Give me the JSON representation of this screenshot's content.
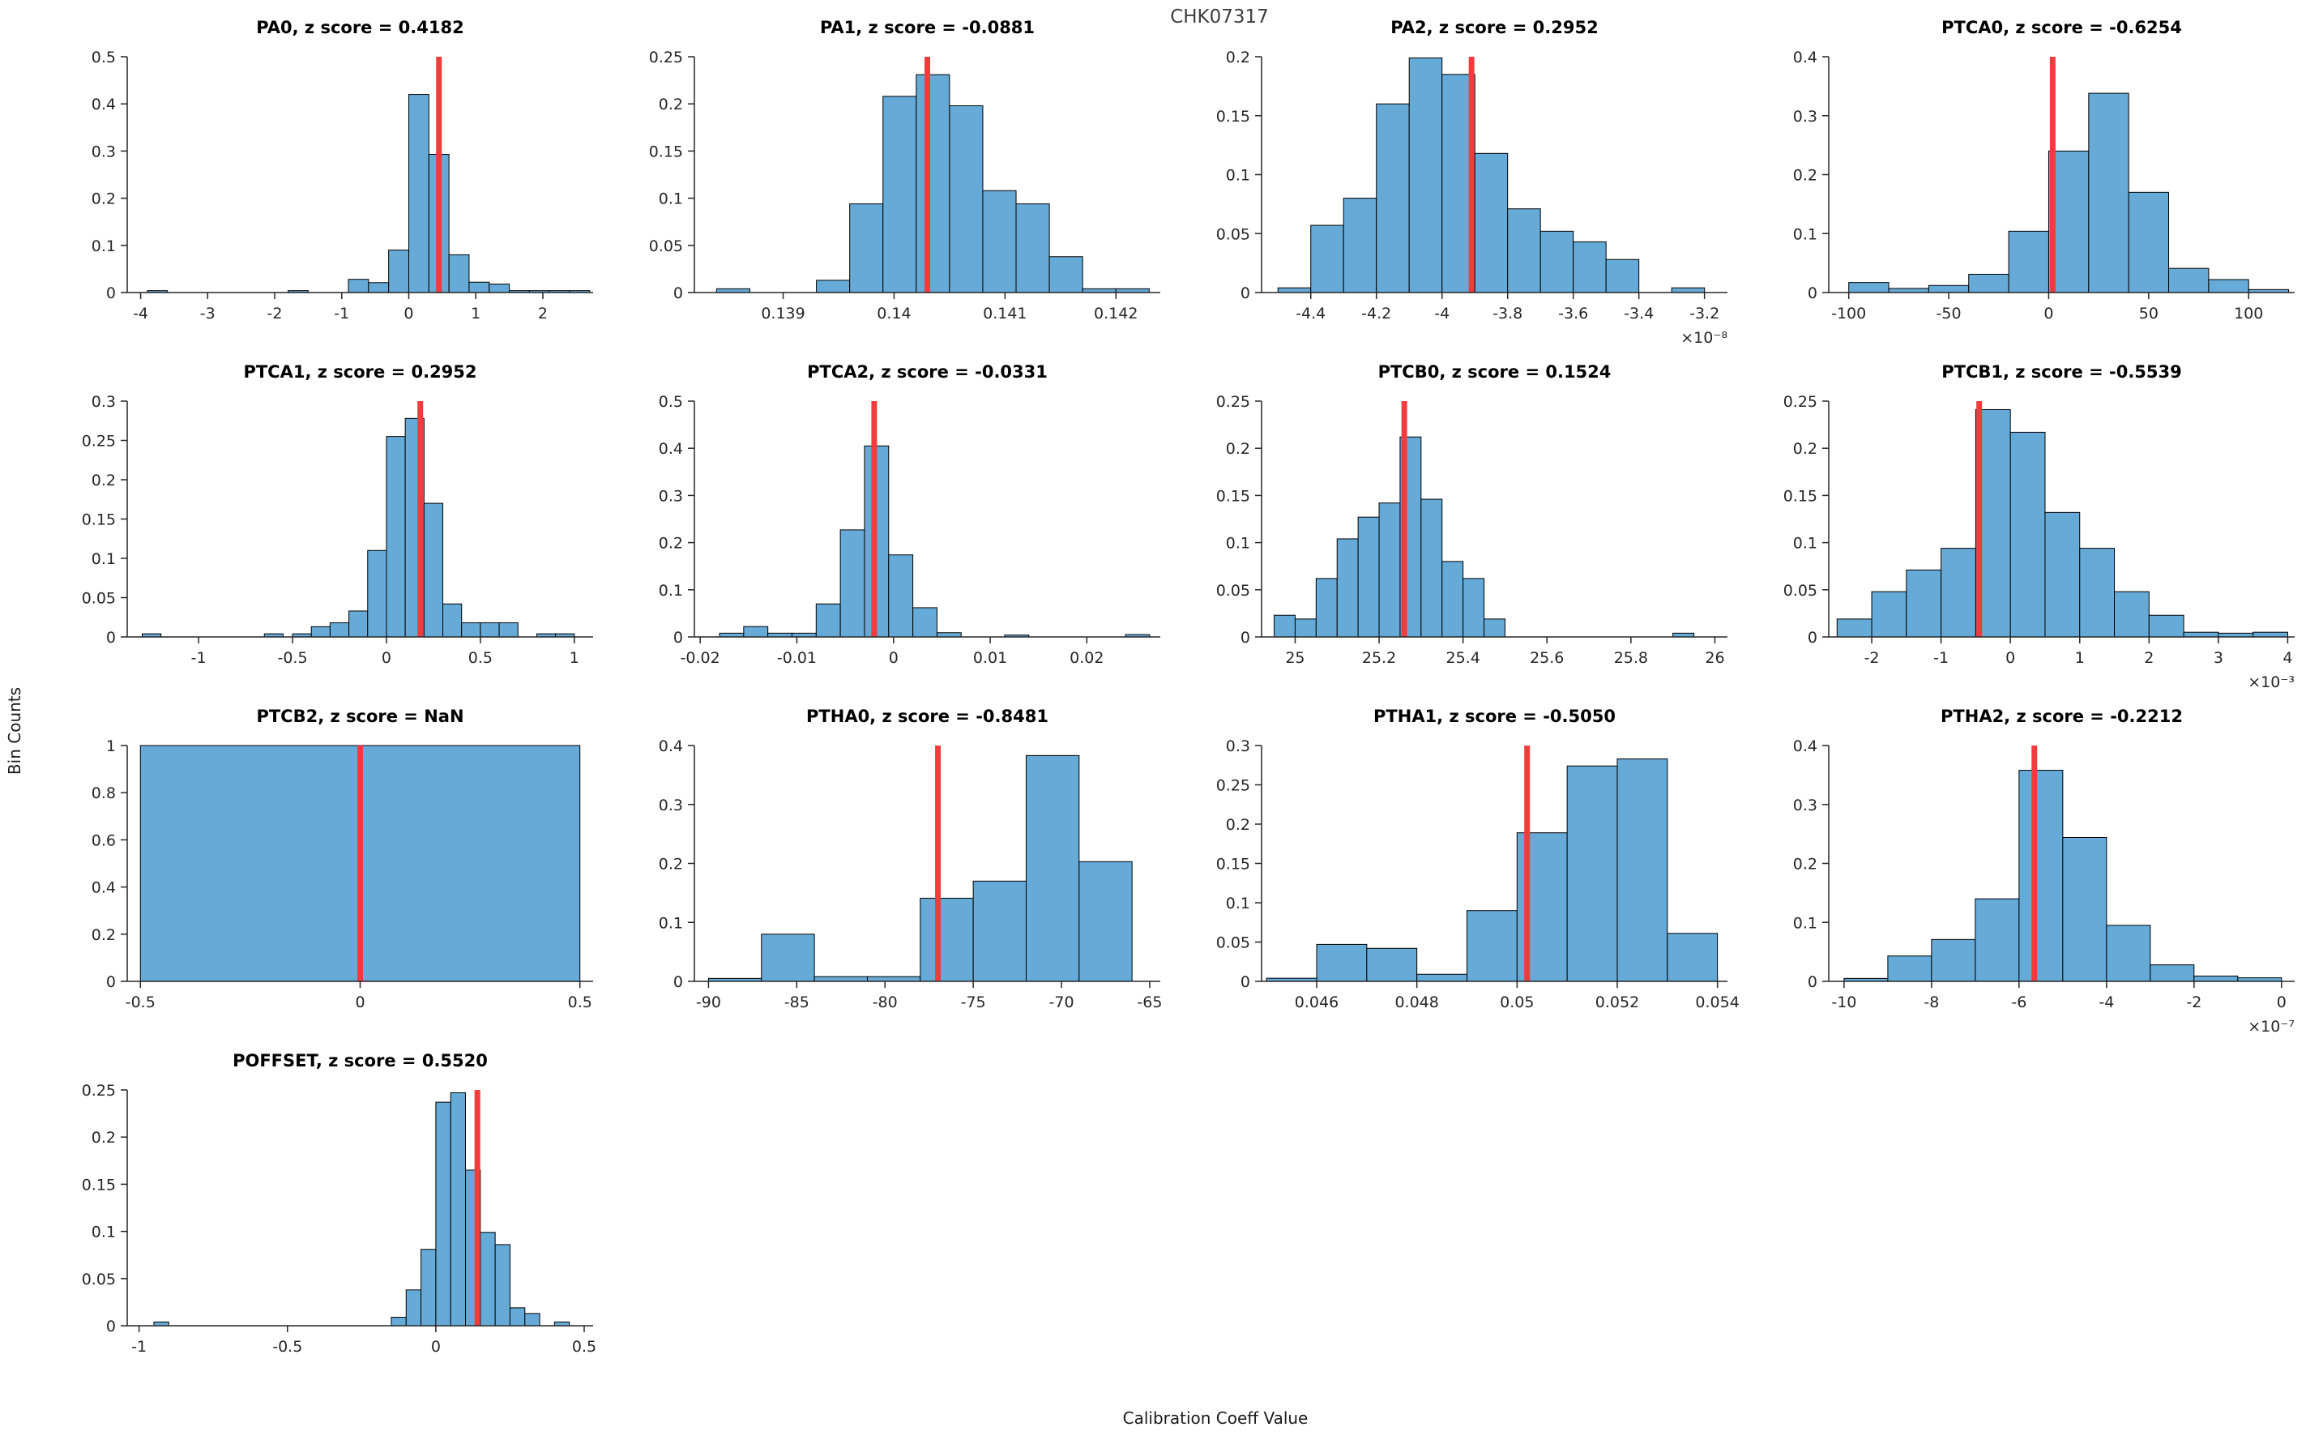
{
  "figure": {
    "title": "CHK07317",
    "ylabel": "Bin Counts",
    "xlabel": "Calibration Coeff Value",
    "colors": {
      "bar_fill": "#66aad7",
      "bar_edge": "#000000",
      "marker_line": "#f03c3c",
      "axis": "#262626",
      "tick_label": "#262626"
    }
  },
  "chart_data": [
    {
      "type": "bar",
      "name": "PA0",
      "title": "PA0, z score = 0.4182",
      "xlim": [
        -4.2,
        2.75
      ],
      "ylim": [
        0,
        0.5
      ],
      "xticks": [
        [
          -4,
          "-4"
        ],
        [
          -3,
          "-3"
        ],
        [
          -2,
          "-2"
        ],
        [
          -1,
          "-1"
        ],
        [
          0,
          "0"
        ],
        [
          1,
          "1"
        ],
        [
          2,
          "2"
        ]
      ],
      "yticks": [
        [
          0,
          "0"
        ],
        [
          0.1,
          "0.1"
        ],
        [
          0.2,
          "0.2"
        ],
        [
          0.3,
          "0.3"
        ],
        [
          0.4,
          "0.4"
        ],
        [
          0.5,
          "0.5"
        ]
      ],
      "bin_width": 0.3,
      "bins": [
        [
          -3.9,
          0.004
        ],
        [
          -1.8,
          0.004
        ],
        [
          -0.9,
          0.028
        ],
        [
          -0.6,
          0.021
        ],
        [
          -0.3,
          0.09
        ],
        [
          0,
          0.42
        ],
        [
          0.3,
          0.293
        ],
        [
          0.6,
          0.08
        ],
        [
          0.9,
          0.022
        ],
        [
          1.2,
          0.018
        ],
        [
          1.5,
          0.004
        ],
        [
          1.8,
          0.004
        ],
        [
          2.1,
          0.004
        ],
        [
          2.4,
          0.004
        ]
      ],
      "marker_x": 0.45,
      "x_exponent": null
    },
    {
      "type": "bar",
      "name": "PA1",
      "title": "PA1, z score = -0.0881",
      "xlim": [
        0.1382,
        0.1424
      ],
      "ylim": [
        0,
        0.25
      ],
      "xticks": [
        [
          0.139,
          "0.139"
        ],
        [
          0.14,
          "0.14"
        ],
        [
          0.141,
          "0.141"
        ],
        [
          0.142,
          "0.142"
        ]
      ],
      "yticks": [
        [
          0,
          "0"
        ],
        [
          0.05,
          "0.05"
        ],
        [
          0.1,
          "0.1"
        ],
        [
          0.15,
          "0.15"
        ],
        [
          0.2,
          "0.2"
        ],
        [
          0.25,
          "0.25"
        ]
      ],
      "bin_width": 0.0003,
      "bins": [
        [
          0.1384,
          0.004
        ],
        [
          0.1393,
          0.013
        ],
        [
          0.1396,
          0.094
        ],
        [
          0.1399,
          0.208
        ],
        [
          0.1402,
          0.231
        ],
        [
          0.1405,
          0.198
        ],
        [
          0.1408,
          0.108
        ],
        [
          0.1411,
          0.094
        ],
        [
          0.1414,
          0.038
        ],
        [
          0.1417,
          0.004
        ],
        [
          0.142,
          0.004
        ]
      ],
      "marker_x": 0.1403,
      "x_exponent": null
    },
    {
      "type": "bar",
      "name": "PA2",
      "title": "PA2, z score = 0.2952",
      "xlim": [
        -4.55,
        -3.13
      ],
      "ylim": [
        0,
        0.2
      ],
      "xticks": [
        [
          -4.4,
          "-4.4"
        ],
        [
          -4.2,
          "-4.2"
        ],
        [
          -4,
          "-4"
        ],
        [
          -3.8,
          "-3.8"
        ],
        [
          -3.6,
          "-3.6"
        ],
        [
          -3.4,
          "-3.4"
        ],
        [
          -3.2,
          "-3.2"
        ]
      ],
      "yticks": [
        [
          0,
          "0"
        ],
        [
          0.05,
          "0.05"
        ],
        [
          0.1,
          "0.1"
        ],
        [
          0.15,
          "0.15"
        ],
        [
          0.2,
          "0.2"
        ]
      ],
      "bin_width": 0.1,
      "bins": [
        [
          -4.5,
          0.004
        ],
        [
          -4.4,
          0.057
        ],
        [
          -4.3,
          0.08
        ],
        [
          -4.2,
          0.16
        ],
        [
          -4.1,
          0.199
        ],
        [
          -4.0,
          0.185
        ],
        [
          -3.9,
          0.118
        ],
        [
          -3.8,
          0.071
        ],
        [
          -3.7,
          0.052
        ],
        [
          -3.6,
          0.043
        ],
        [
          -3.5,
          0.028
        ],
        [
          -3.3,
          0.004
        ]
      ],
      "marker_x": -3.91,
      "x_exponent": "×10⁻⁸"
    },
    {
      "type": "bar",
      "name": "PTCA0",
      "title": "PTCA0, z score = -0.6254",
      "xlim": [
        -110,
        123
      ],
      "ylim": [
        0,
        0.4
      ],
      "xticks": [
        [
          -100,
          "-100"
        ],
        [
          -50,
          "-50"
        ],
        [
          0,
          "0"
        ],
        [
          50,
          "50"
        ],
        [
          100,
          "100"
        ]
      ],
      "yticks": [
        [
          0,
          "0"
        ],
        [
          0.1,
          "0.1"
        ],
        [
          0.2,
          "0.2"
        ],
        [
          0.3,
          "0.3"
        ],
        [
          0.4,
          "0.4"
        ]
      ],
      "bin_width": 20,
      "bins": [
        [
          -100,
          0.017
        ],
        [
          -80,
          0.007
        ],
        [
          -60,
          0.012
        ],
        [
          -40,
          0.031
        ],
        [
          -20,
          0.104
        ],
        [
          0,
          0.24
        ],
        [
          20,
          0.338
        ],
        [
          40,
          0.17
        ],
        [
          60,
          0.041
        ],
        [
          80,
          0.022
        ],
        [
          100,
          0.005
        ]
      ],
      "marker_x": 2,
      "x_exponent": null
    },
    {
      "type": "bar",
      "name": "PTCA1",
      "title": "PTCA1, z score = 0.2952",
      "xlim": [
        -1.38,
        1.1
      ],
      "ylim": [
        0,
        0.3
      ],
      "xticks": [
        [
          -1,
          "-1"
        ],
        [
          -0.5,
          "-0.5"
        ],
        [
          0,
          "0"
        ],
        [
          0.5,
          "0.5"
        ],
        [
          1,
          "1"
        ]
      ],
      "yticks": [
        [
          0,
          "0"
        ],
        [
          0.05,
          "0.05"
        ],
        [
          0.1,
          "0.1"
        ],
        [
          0.15,
          "0.15"
        ],
        [
          0.2,
          "0.2"
        ],
        [
          0.25,
          "0.25"
        ],
        [
          0.3,
          "0.3"
        ]
      ],
      "bin_width": 0.1,
      "bins": [
        [
          -1.3,
          0.004
        ],
        [
          -0.65,
          0.004
        ],
        [
          -0.5,
          0.004
        ],
        [
          -0.4,
          0.013
        ],
        [
          -0.3,
          0.018
        ],
        [
          -0.2,
          0.033
        ],
        [
          -0.1,
          0.11
        ],
        [
          0,
          0.255
        ],
        [
          0.1,
          0.278
        ],
        [
          0.2,
          0.17
        ],
        [
          0.3,
          0.042
        ],
        [
          0.4,
          0.018
        ],
        [
          0.5,
          0.018
        ],
        [
          0.6,
          0.018
        ],
        [
          0.8,
          0.004
        ],
        [
          0.9,
          0.004
        ]
      ],
      "marker_x": 0.18,
      "x_exponent": null
    },
    {
      "type": "bar",
      "name": "PTCA2",
      "title": "PTCA2, z score = -0.0331",
      "xlim": [
        -0.0206,
        0.0276
      ],
      "ylim": [
        0,
        0.5
      ],
      "xticks": [
        [
          -0.02,
          "-0.02"
        ],
        [
          -0.01,
          "-0.01"
        ],
        [
          0,
          "0"
        ],
        [
          0.01,
          "0.01"
        ],
        [
          0.02,
          "0.02"
        ]
      ],
      "yticks": [
        [
          0,
          "0"
        ],
        [
          0.1,
          "0.1"
        ],
        [
          0.2,
          "0.2"
        ],
        [
          0.3,
          "0.3"
        ],
        [
          0.4,
          "0.4"
        ],
        [
          0.5,
          "0.5"
        ]
      ],
      "bin_width": 0.0025,
      "bins": [
        [
          -0.018,
          0.008
        ],
        [
          -0.0155,
          0.022
        ],
        [
          -0.013,
          0.008
        ],
        [
          -0.0105,
          0.008
        ],
        [
          -0.008,
          0.07
        ],
        [
          -0.0055,
          0.227
        ],
        [
          -0.003,
          0.405
        ],
        [
          -0.0005,
          0.174
        ],
        [
          0.002,
          0.062
        ],
        [
          0.0045,
          0.009
        ],
        [
          0.0115,
          0.004
        ],
        [
          0.024,
          0.005
        ]
      ],
      "marker_x": -0.002,
      "x_exponent": null
    },
    {
      "type": "bar",
      "name": "PTCB0",
      "title": "PTCB0, z score = 0.1524",
      "xlim": [
        24.92,
        26.03
      ],
      "ylim": [
        0,
        0.25
      ],
      "xticks": [
        [
          25,
          "25"
        ],
        [
          25.2,
          "25.2"
        ],
        [
          25.4,
          "25.4"
        ],
        [
          25.6,
          "25.6"
        ],
        [
          25.8,
          "25.8"
        ],
        [
          26,
          "26"
        ]
      ],
      "yticks": [
        [
          0,
          "0"
        ],
        [
          0.05,
          "0.05"
        ],
        [
          0.1,
          "0.1"
        ],
        [
          0.15,
          "0.15"
        ],
        [
          0.2,
          "0.2"
        ],
        [
          0.25,
          "0.25"
        ]
      ],
      "bin_width": 0.05,
      "bins": [
        [
          24.95,
          0.023
        ],
        [
          25.0,
          0.019
        ],
        [
          25.05,
          0.062
        ],
        [
          25.1,
          0.104
        ],
        [
          25.15,
          0.127
        ],
        [
          25.2,
          0.142
        ],
        [
          25.25,
          0.212
        ],
        [
          25.3,
          0.146
        ],
        [
          25.35,
          0.08
        ],
        [
          25.4,
          0.062
        ],
        [
          25.45,
          0.019
        ],
        [
          25.9,
          0.004
        ]
      ],
      "marker_x": 25.26,
      "x_exponent": null
    },
    {
      "type": "bar",
      "name": "PTCB1",
      "title": "PTCB1, z score = -0.5539",
      "xlim": [
        -2.62,
        4.1
      ],
      "ylim": [
        0,
        0.25
      ],
      "xticks": [
        [
          -2,
          "-2"
        ],
        [
          -1,
          "-1"
        ],
        [
          0,
          "0"
        ],
        [
          1,
          "1"
        ],
        [
          2,
          "2"
        ],
        [
          3,
          "3"
        ],
        [
          4,
          "4"
        ]
      ],
      "yticks": [
        [
          0,
          "0"
        ],
        [
          0.05,
          "0.05"
        ],
        [
          0.1,
          "0.1"
        ],
        [
          0.15,
          "0.15"
        ],
        [
          0.2,
          "0.2"
        ],
        [
          0.25,
          "0.25"
        ]
      ],
      "bin_width": 0.5,
      "bins": [
        [
          -2.5,
          0.019
        ],
        [
          -2.0,
          0.048
        ],
        [
          -1.5,
          0.071
        ],
        [
          -1.0,
          0.094
        ],
        [
          -0.5,
          0.241
        ],
        [
          0,
          0.217
        ],
        [
          0.5,
          0.132
        ],
        [
          1.0,
          0.094
        ],
        [
          1.5,
          0.048
        ],
        [
          2.0,
          0.023
        ],
        [
          2.5,
          0.005
        ],
        [
          3.0,
          0.004
        ],
        [
          3.5,
          0.005
        ]
      ],
      "marker_x": -0.45,
      "x_exponent": "×10⁻³"
    },
    {
      "type": "bar",
      "name": "PTCB2",
      "title": "PTCB2, z score = NaN",
      "xlim": [
        -0.53,
        0.53
      ],
      "ylim": [
        0,
        1
      ],
      "xticks": [
        [
          -0.5,
          "-0.5"
        ],
        [
          0,
          "0"
        ],
        [
          0.5,
          "0.5"
        ]
      ],
      "yticks": [
        [
          0,
          "0"
        ],
        [
          0.2,
          "0.2"
        ],
        [
          0.4,
          "0.4"
        ],
        [
          0.6,
          "0.6"
        ],
        [
          0.8,
          "0.8"
        ],
        [
          1,
          "1"
        ]
      ],
      "bin_width": 1.0,
      "bins": [
        [
          -0.5,
          1.0
        ]
      ],
      "marker_x": 0,
      "x_exponent": null
    },
    {
      "type": "bar",
      "name": "PTHA0",
      "title": "PTHA0, z score = -0.8481",
      "xlim": [
        -90.8,
        -64.4
      ],
      "ylim": [
        0,
        0.4
      ],
      "xticks": [
        [
          -90,
          "-90"
        ],
        [
          -85,
          "-85"
        ],
        [
          -80,
          "-80"
        ],
        [
          -75,
          "-75"
        ],
        [
          -70,
          "-70"
        ],
        [
          -65,
          "-65"
        ]
      ],
      "yticks": [
        [
          0,
          "0"
        ],
        [
          0.1,
          "0.1"
        ],
        [
          0.2,
          "0.2"
        ],
        [
          0.3,
          "0.3"
        ],
        [
          0.4,
          "0.4"
        ]
      ],
      "bin_width": 3,
      "bins": [
        [
          -90,
          0.005
        ],
        [
          -87,
          0.08
        ],
        [
          -84,
          0.008
        ],
        [
          -81,
          0.008
        ],
        [
          -78,
          0.141
        ],
        [
          -75,
          0.17
        ],
        [
          -72,
          0.383
        ],
        [
          -69,
          0.203
        ]
      ],
      "marker_x": -77,
      "x_exponent": null
    },
    {
      "type": "bar",
      "name": "PTHA1",
      "title": "PTHA1, z score = -0.5050",
      "xlim": [
        0.0449,
        0.0542
      ],
      "ylim": [
        0,
        0.3
      ],
      "xticks": [
        [
          0.046,
          "0.046"
        ],
        [
          0.048,
          "0.048"
        ],
        [
          0.05,
          "0.05"
        ],
        [
          0.052,
          "0.052"
        ],
        [
          0.054,
          "0.054"
        ]
      ],
      "yticks": [
        [
          0,
          "0"
        ],
        [
          0.05,
          "0.05"
        ],
        [
          0.1,
          "0.1"
        ],
        [
          0.15,
          "0.15"
        ],
        [
          0.2,
          "0.2"
        ],
        [
          0.25,
          "0.25"
        ],
        [
          0.3,
          "0.3"
        ]
      ],
      "bin_width": 0.001,
      "bins": [
        [
          0.045,
          0.004
        ],
        [
          0.046,
          0.047
        ],
        [
          0.047,
          0.042
        ],
        [
          0.048,
          0.009
        ],
        [
          0.049,
          0.09
        ],
        [
          0.05,
          0.189
        ],
        [
          0.051,
          0.274
        ],
        [
          0.052,
          0.283
        ],
        [
          0.053,
          0.061
        ]
      ],
      "marker_x": 0.0502,
      "x_exponent": null
    },
    {
      "type": "bar",
      "name": "PTHA2",
      "title": "PTHA2, z score = -0.2212",
      "xlim": [
        -10.35,
        0.3
      ],
      "ylim": [
        0,
        0.4
      ],
      "xticks": [
        [
          -10,
          "-10"
        ],
        [
          -8,
          "-8"
        ],
        [
          -6,
          "-6"
        ],
        [
          -4,
          "-4"
        ],
        [
          -2,
          "-2"
        ],
        [
          0,
          "0"
        ]
      ],
      "yticks": [
        [
          0,
          "0"
        ],
        [
          0.1,
          "0.1"
        ],
        [
          0.2,
          "0.2"
        ],
        [
          0.3,
          "0.3"
        ],
        [
          0.4,
          "0.4"
        ]
      ],
      "bin_width": 1,
      "bins": [
        [
          -10,
          0.005
        ],
        [
          -9,
          0.043
        ],
        [
          -8,
          0.071
        ],
        [
          -7,
          0.14
        ],
        [
          -6,
          0.358
        ],
        [
          -5,
          0.244
        ],
        [
          -4,
          0.095
        ],
        [
          -3,
          0.028
        ],
        [
          -2,
          0.009
        ],
        [
          -1,
          0.006
        ]
      ],
      "marker_x": -5.65,
      "x_exponent": "×10⁻⁷"
    },
    {
      "type": "bar",
      "name": "POFFSET",
      "title": "POFFSET, z score = 0.5520",
      "xlim": [
        -1.04,
        0.53
      ],
      "ylim": [
        0,
        0.25
      ],
      "xticks": [
        [
          -1,
          "-1"
        ],
        [
          -0.5,
          "-0.5"
        ],
        [
          0,
          "0"
        ],
        [
          0.5,
          "0.5"
        ]
      ],
      "yticks": [
        [
          0,
          "0"
        ],
        [
          0.05,
          "0.05"
        ],
        [
          0.1,
          "0.1"
        ],
        [
          0.15,
          "0.15"
        ],
        [
          0.2,
          "0.2"
        ],
        [
          0.25,
          "0.25"
        ]
      ],
      "bin_width": 0.05,
      "bins": [
        [
          -0.95,
          0.004
        ],
        [
          -0.15,
          0.009
        ],
        [
          -0.1,
          0.038
        ],
        [
          -0.05,
          0.081
        ],
        [
          0,
          0.237
        ],
        [
          0.05,
          0.247
        ],
        [
          0.1,
          0.165
        ],
        [
          0.15,
          0.099
        ],
        [
          0.2,
          0.086
        ],
        [
          0.25,
          0.019
        ],
        [
          0.3,
          0.013
        ],
        [
          0.4,
          0.004
        ]
      ],
      "marker_x": 0.14,
      "x_exponent": null
    }
  ]
}
